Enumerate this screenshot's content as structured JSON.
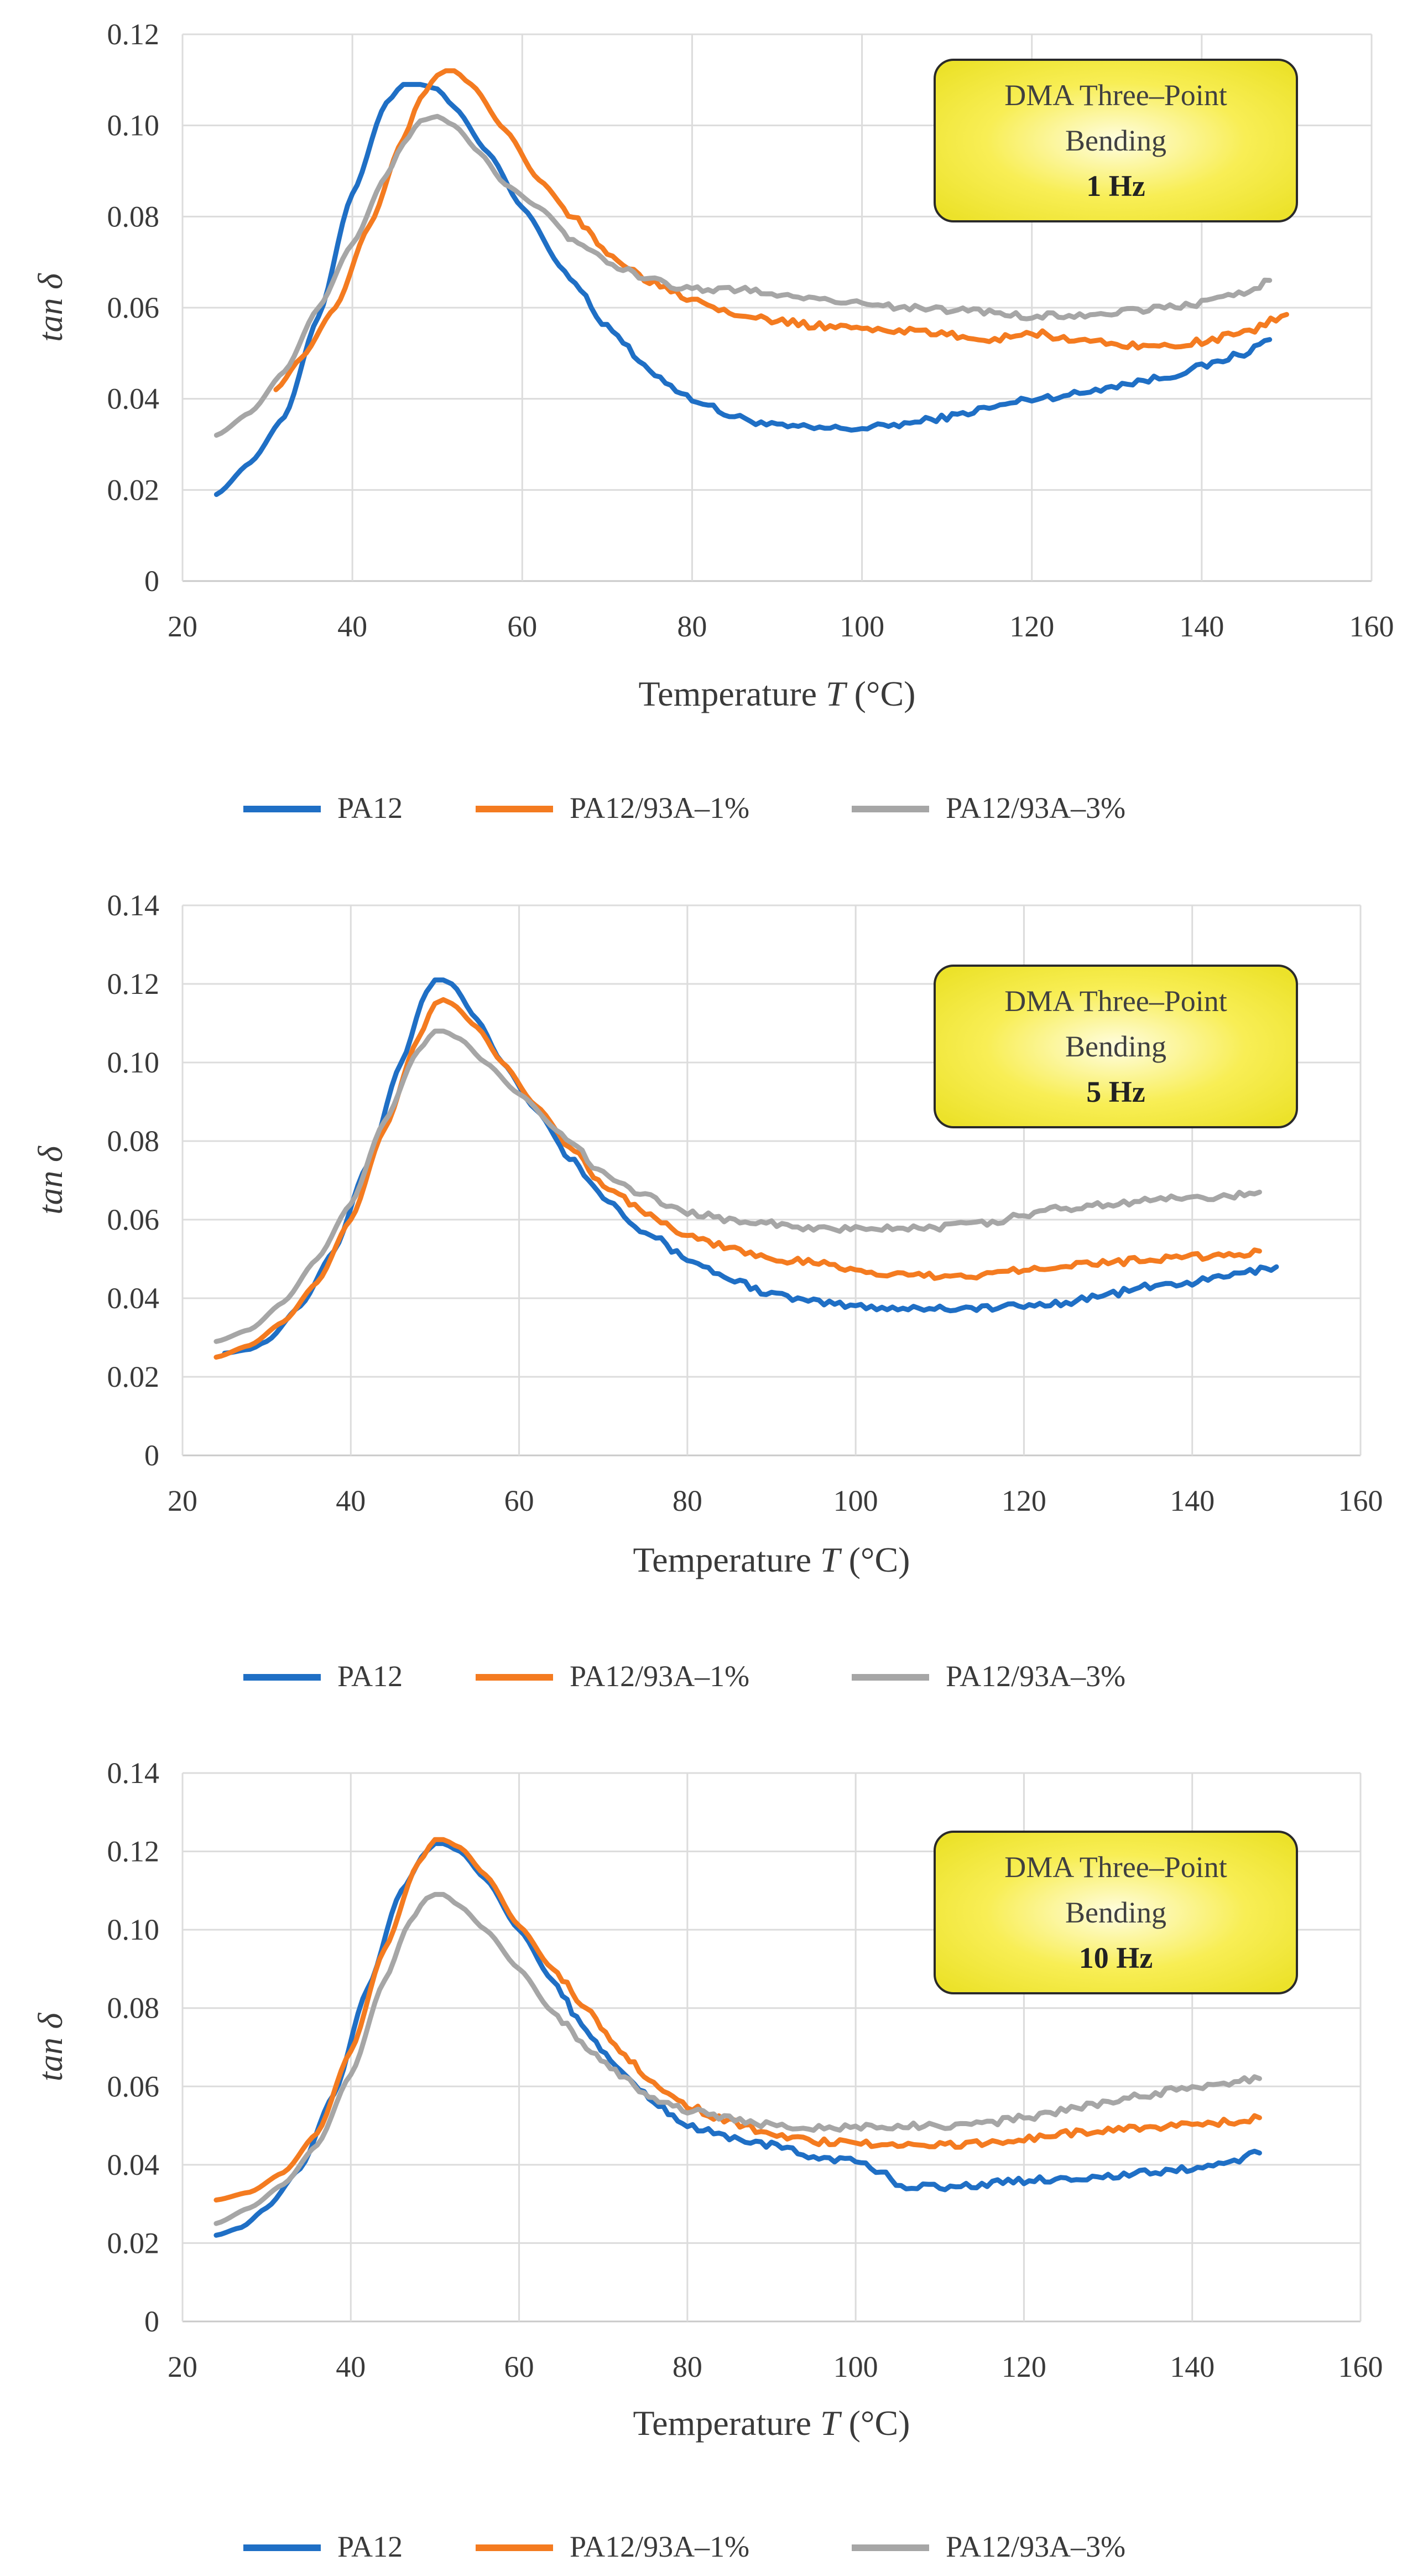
{
  "chart_data": [
    {
      "type": "line",
      "xlabel": "Temperature T (°C)",
      "ylabel": "tan δ",
      "xlim": [
        20,
        160
      ],
      "ylim": [
        0,
        0.12
      ],
      "x_ticks": [
        "20",
        "40",
        "60",
        "80",
        "100",
        "120",
        "140",
        "160"
      ],
      "y_ticks": [
        "0",
        "0.02",
        "0.04",
        "0.06",
        "0.08",
        "0.10",
        "0.12"
      ],
      "grid": true,
      "annotation": [
        "DMA Three–Point",
        "Bending",
        "1 Hz"
      ],
      "legend": [
        "PA12",
        "PA12/93A–1%",
        "PA12/93A–3%"
      ],
      "series": [
        {
          "name": "PA12",
          "color": "#1f6fc5",
          "x": [
            24,
            28,
            32,
            36,
            40,
            44,
            46,
            48,
            50,
            52,
            56,
            60,
            65,
            70,
            75,
            80,
            85,
            90,
            95,
            100,
            105,
            110,
            115,
            120,
            125,
            130,
            135,
            140,
            145,
            148
          ],
          "y": [
            0.019,
            0.026,
            0.036,
            0.058,
            0.085,
            0.105,
            0.109,
            0.109,
            0.108,
            0.104,
            0.094,
            0.082,
            0.068,
            0.056,
            0.046,
            0.04,
            0.036,
            0.034,
            0.0335,
            0.0335,
            0.0345,
            0.036,
            0.038,
            0.04,
            0.041,
            0.043,
            0.0445,
            0.047,
            0.05,
            0.053
          ]
        },
        {
          "name": "PA12/93A–1%",
          "color": "#f47b20",
          "x": [
            31,
            34,
            38,
            42,
            46,
            48,
            50,
            51,
            52,
            54,
            58,
            62,
            66,
            70,
            75,
            80,
            85,
            90,
            95,
            100,
            105,
            110,
            115,
            120,
            125,
            130,
            135,
            140,
            145,
            150
          ],
          "y": [
            0.042,
            0.049,
            0.06,
            0.078,
            0.097,
            0.106,
            0.111,
            0.112,
            0.112,
            0.109,
            0.099,
            0.088,
            0.08,
            0.072,
            0.066,
            0.062,
            0.059,
            0.057,
            0.056,
            0.0555,
            0.055,
            0.054,
            0.053,
            0.0545,
            0.053,
            0.052,
            0.0515,
            0.0525,
            0.0545,
            0.0585
          ]
        },
        {
          "name": "PA12/93A–3%",
          "color": "#a6a6a6",
          "x": [
            24,
            28,
            32,
            36,
            40,
            44,
            46,
            48,
            50,
            52,
            55,
            58,
            62,
            66,
            70,
            75,
            80,
            85,
            90,
            95,
            100,
            105,
            110,
            115,
            120,
            125,
            130,
            135,
            140,
            145,
            148
          ],
          "y": [
            0.032,
            0.037,
            0.046,
            0.06,
            0.074,
            0.089,
            0.096,
            0.101,
            0.102,
            0.1,
            0.094,
            0.087,
            0.082,
            0.075,
            0.07,
            0.066,
            0.064,
            0.064,
            0.063,
            0.062,
            0.061,
            0.06,
            0.0595,
            0.059,
            0.058,
            0.0585,
            0.059,
            0.06,
            0.061,
            0.063,
            0.066
          ]
        }
      ]
    },
    {
      "type": "line",
      "xlabel": "Temperature T (°C)",
      "ylabel": "tan δ",
      "xlim": [
        20,
        160
      ],
      "ylim": [
        0,
        0.14
      ],
      "x_ticks": [
        "20",
        "40",
        "60",
        "80",
        "100",
        "120",
        "140",
        "160"
      ],
      "y_ticks": [
        "0",
        "0.02",
        "0.04",
        "0.06",
        "0.08",
        "0.10",
        "0.12",
        "0.14"
      ],
      "grid": true,
      "annotation": [
        "DMA Three–Point",
        "Bending",
        "5 Hz"
      ],
      "legend": [
        "PA12",
        "PA12/93A–1%",
        "PA12/93A–3%"
      ],
      "series": [
        {
          "name": "PA12",
          "color": "#1f6fc5",
          "x": [
            25,
            28,
            30,
            34,
            38,
            42,
            46,
            49,
            50,
            51,
            52,
            55,
            58,
            62,
            66,
            70,
            75,
            80,
            85,
            90,
            95,
            100,
            105,
            110,
            115,
            120,
            125,
            130,
            135,
            140,
            145,
            150
          ],
          "y": [
            0.026,
            0.027,
            0.029,
            0.038,
            0.052,
            0.074,
            0.1,
            0.118,
            0.121,
            0.121,
            0.12,
            0.111,
            0.1,
            0.088,
            0.076,
            0.066,
            0.057,
            0.05,
            0.045,
            0.041,
            0.039,
            0.038,
            0.0375,
            0.0375,
            0.0375,
            0.038,
            0.039,
            0.041,
            0.043,
            0.044,
            0.046,
            0.048
          ]
        },
        {
          "name": "PA12/93A–1%",
          "color": "#f47b20",
          "x": [
            24,
            28,
            32,
            36,
            40,
            44,
            48,
            50,
            51,
            52,
            55,
            58,
            62,
            66,
            70,
            75,
            80,
            85,
            90,
            95,
            100,
            105,
            110,
            115,
            120,
            125,
            130,
            135,
            140,
            145,
            148
          ],
          "y": [
            0.025,
            0.028,
            0.034,
            0.044,
            0.06,
            0.083,
            0.106,
            0.115,
            0.116,
            0.115,
            0.109,
            0.1,
            0.089,
            0.079,
            0.069,
            0.062,
            0.056,
            0.053,
            0.05,
            0.049,
            0.047,
            0.046,
            0.0455,
            0.046,
            0.0475,
            0.0485,
            0.049,
            0.05,
            0.0505,
            0.051,
            0.052
          ]
        },
        {
          "name": "PA12/93A–3%",
          "color": "#a6a6a6",
          "x": [
            24,
            28,
            32,
            36,
            40,
            44,
            48,
            50,
            51,
            53,
            56,
            60,
            65,
            70,
            75,
            80,
            85,
            90,
            95,
            100,
            105,
            110,
            115,
            120,
            125,
            130,
            135,
            140,
            145,
            148
          ],
          "y": [
            0.029,
            0.032,
            0.039,
            0.05,
            0.064,
            0.085,
            0.103,
            0.108,
            0.108,
            0.106,
            0.1,
            0.092,
            0.082,
            0.072,
            0.066,
            0.062,
            0.06,
            0.059,
            0.0575,
            0.0575,
            0.058,
            0.058,
            0.059,
            0.061,
            0.063,
            0.064,
            0.065,
            0.0655,
            0.066,
            0.067
          ]
        }
      ]
    },
    {
      "type": "line",
      "xlabel": "Temperature T (°C)",
      "ylabel": "tan δ",
      "xlim": [
        20,
        160
      ],
      "ylim": [
        0,
        0.14
      ],
      "x_ticks": [
        "20",
        "40",
        "60",
        "80",
        "100",
        "120",
        "140",
        "160"
      ],
      "y_ticks": [
        "0",
        "0.02",
        "0.04",
        "0.06",
        "0.08",
        "0.10",
        "0.12",
        "0.14"
      ],
      "grid": true,
      "annotation": [
        "DMA Three–Point",
        "Bending",
        "10 Hz"
      ],
      "legend": [
        "PA12",
        "PA12/93A–1%",
        "PA12/93A–3%"
      ],
      "series": [
        {
          "name": "PA12",
          "color": "#1f6fc5",
          "x": [
            24,
            27,
            30,
            34,
            38,
            42,
            46,
            49,
            50,
            51,
            53,
            56,
            60,
            64,
            68,
            72,
            76,
            80,
            85,
            90,
            95,
            100,
            103,
            106,
            108,
            110,
            115,
            120,
            125,
            130,
            135,
            140,
            145,
            148
          ],
          "y": [
            0.022,
            0.024,
            0.029,
            0.039,
            0.058,
            0.085,
            0.11,
            0.12,
            0.122,
            0.122,
            0.12,
            0.113,
            0.1,
            0.087,
            0.074,
            0.064,
            0.056,
            0.05,
            0.047,
            0.045,
            0.042,
            0.041,
            0.038,
            0.034,
            0.035,
            0.034,
            0.035,
            0.036,
            0.0365,
            0.037,
            0.038,
            0.039,
            0.041,
            0.043
          ]
        },
        {
          "name": "PA12/93A–1%",
          "color": "#f47b20",
          "x": [
            24,
            28,
            32,
            36,
            40,
            44,
            48,
            50,
            51,
            53,
            56,
            60,
            64,
            68,
            72,
            76,
            80,
            85,
            90,
            95,
            100,
            105,
            110,
            115,
            120,
            125,
            130,
            135,
            140,
            145,
            148
          ],
          "y": [
            0.031,
            0.033,
            0.038,
            0.048,
            0.069,
            0.095,
            0.117,
            0.123,
            0.123,
            0.121,
            0.114,
            0.101,
            0.09,
            0.08,
            0.069,
            0.061,
            0.055,
            0.051,
            0.048,
            0.046,
            0.0455,
            0.045,
            0.045,
            0.0455,
            0.0465,
            0.048,
            0.049,
            0.0495,
            0.0505,
            0.051,
            0.052
          ]
        },
        {
          "name": "PA12/93A–3%",
          "color": "#a6a6a6",
          "x": [
            24,
            28,
            32,
            36,
            40,
            44,
            47,
            49,
            50,
            51,
            53,
            56,
            60,
            64,
            68,
            72,
            76,
            80,
            85,
            90,
            95,
            100,
            105,
            110,
            115,
            120,
            125,
            130,
            135,
            140,
            145,
            148
          ],
          "y": [
            0.025,
            0.029,
            0.035,
            0.045,
            0.063,
            0.087,
            0.102,
            0.108,
            0.109,
            0.109,
            0.106,
            0.1,
            0.09,
            0.079,
            0.07,
            0.063,
            0.057,
            0.054,
            0.052,
            0.05,
            0.0495,
            0.0495,
            0.05,
            0.05,
            0.0505,
            0.052,
            0.054,
            0.056,
            0.058,
            0.06,
            0.061,
            0.062
          ]
        }
      ]
    }
  ]
}
